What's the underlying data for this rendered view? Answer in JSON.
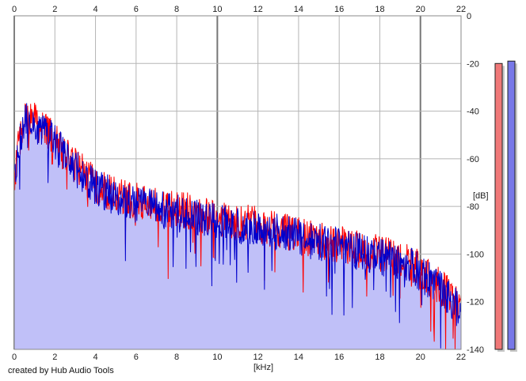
{
  "chart_data": {
    "type": "area",
    "title": "",
    "xlabel": "[kHz]",
    "ylabel": "[dB]",
    "xlim": [
      0,
      22
    ],
    "ylim": [
      -140,
      0
    ],
    "x_ticks": [
      "0",
      "2",
      "4",
      "6",
      "8",
      "10",
      "12",
      "14",
      "16",
      "18",
      "20",
      "22"
    ],
    "y_ticks": [
      "0",
      "-20",
      "-40",
      "-60",
      "-80",
      "-100",
      "-120",
      "-140"
    ],
    "grid": true,
    "series": [
      {
        "color": "#ff0000",
        "x": [
          0,
          0.25,
          0.5,
          0.75,
          1,
          1.5,
          2,
          2.5,
          3,
          3.5,
          4,
          4.5,
          5,
          5.5,
          6,
          6.5,
          7,
          7.5,
          8,
          8.5,
          9,
          9.5,
          10,
          10.5,
          11,
          11.5,
          12,
          12.5,
          13,
          13.5,
          14,
          14.5,
          15,
          15.5,
          16,
          16.5,
          17,
          17.5,
          18,
          18.5,
          19,
          19.5,
          20,
          20.5,
          21,
          21.5,
          22
        ],
        "values": [
          -70,
          -52,
          -44,
          -43,
          -44,
          -48,
          -52,
          -58,
          -63,
          -67,
          -71,
          -73,
          -75,
          -77,
          -78,
          -79,
          -80,
          -81,
          -82,
          -82,
          -83,
          -84,
          -85,
          -86,
          -87,
          -87,
          -88,
          -89,
          -90,
          -91,
          -92,
          -93,
          -94,
          -95,
          -96,
          -97,
          -98,
          -99,
          -100,
          -101,
          -102,
          -103,
          -107,
          -110,
          -114,
          -118,
          -124
        ]
      },
      {
        "color": "#0000cc",
        "x": [
          0,
          0.25,
          0.5,
          0.75,
          1,
          1.5,
          2,
          2.5,
          3,
          3.5,
          4,
          4.5,
          5,
          5.5,
          6,
          6.5,
          7,
          7.5,
          8,
          8.5,
          9,
          9.5,
          10,
          10.5,
          11,
          11.5,
          12,
          12.5,
          13,
          13.5,
          14,
          14.5,
          15,
          15.5,
          16,
          16.5,
          17,
          17.5,
          18,
          18.5,
          19,
          19.5,
          20,
          20.5,
          21,
          21.5,
          22
        ],
        "values": [
          -70,
          -53,
          -45,
          -44,
          -45,
          -49,
          -53,
          -59,
          -64,
          -68,
          -72,
          -74,
          -76,
          -78,
          -79,
          -80,
          -81,
          -82,
          -83,
          -83,
          -84,
          -85,
          -86,
          -87,
          -88,
          -88,
          -89,
          -90,
          -91,
          -92,
          -93,
          -94,
          -95,
          -96,
          -97,
          -98,
          -99,
          -100,
          -101,
          -102,
          -103,
          -104,
          -108,
          -111,
          -115,
          -119,
          -125
        ]
      }
    ],
    "fill_color": "#c0c0f8",
    "level_meters": [
      {
        "color": "#f07878",
        "level_db": -20
      },
      {
        "color": "#7878e8",
        "level_db": -19
      }
    ]
  },
  "credit": "created by Hub Audio Tools"
}
